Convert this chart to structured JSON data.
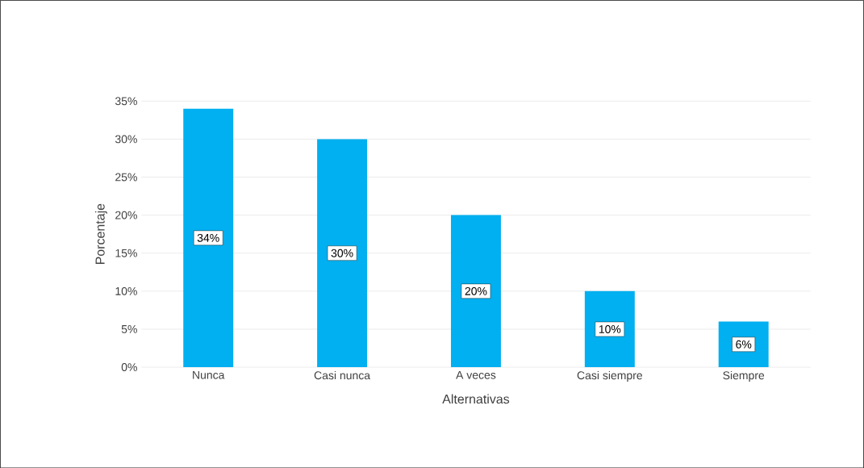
{
  "chart_data": {
    "type": "bar",
    "xlabel": "Alternativas",
    "ylabel": "Porcentaje",
    "categories": [
      "Nunca",
      "Casi nunca",
      "A veces",
      "Casi siempre",
      "Siempre"
    ],
    "values": [
      34,
      30,
      20,
      10,
      6
    ],
    "value_labels": [
      "34%",
      "30%",
      "20%",
      "10%",
      "6%"
    ],
    "color": "#00b0f0",
    "ylim": [
      0,
      35
    ],
    "yticks": [
      {
        "value": 0,
        "label": "0%"
      },
      {
        "value": 5,
        "label": "5%"
      },
      {
        "value": 10,
        "label": "10%"
      },
      {
        "value": 15,
        "label": "15%"
      },
      {
        "value": 20,
        "label": "20%"
      },
      {
        "value": 25,
        "label": "25%"
      },
      {
        "value": 30,
        "label": "30%"
      },
      {
        "value": 35,
        "label": "35%"
      }
    ],
    "grid": "y"
  }
}
